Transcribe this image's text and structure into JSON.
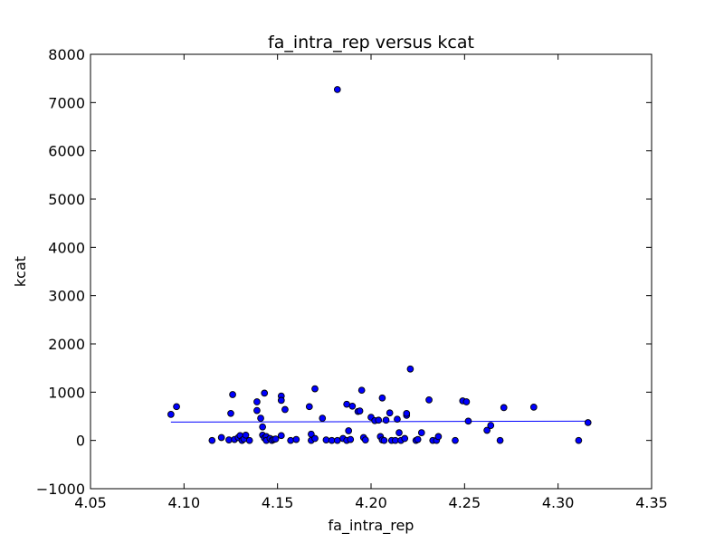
{
  "chart_data": {
    "type": "scatter",
    "title": "fa_intra_rep versus kcat",
    "xlabel": "fa_intra_rep",
    "ylabel": "kcat",
    "xlim": [
      4.05,
      4.35
    ],
    "ylim": [
      -1000,
      8000
    ],
    "xticks": [
      4.05,
      4.1,
      4.15,
      4.2,
      4.25,
      4.3,
      4.35
    ],
    "yticks": [
      -1000,
      0,
      1000,
      2000,
      3000,
      4000,
      5000,
      6000,
      7000,
      8000
    ],
    "xtick_labels": [
      "4.05",
      "4.10",
      "4.15",
      "4.20",
      "4.25",
      "4.30",
      "4.35"
    ],
    "ytick_labels": [
      "−1000",
      "0",
      "1000",
      "2000",
      "3000",
      "4000",
      "5000",
      "6000",
      "7000",
      "8000"
    ],
    "grid": false,
    "marker_color": "#0000ff",
    "line_color": "#0000ff",
    "points": [
      [
        4.093,
        540
      ],
      [
        4.096,
        700
      ],
      [
        4.115,
        0
      ],
      [
        4.12,
        60
      ],
      [
        4.124,
        10
      ],
      [
        4.125,
        560
      ],
      [
        4.126,
        950
      ],
      [
        4.127,
        20
      ],
      [
        4.129,
        60
      ],
      [
        4.13,
        100
      ],
      [
        4.131,
        0
      ],
      [
        4.132,
        30
      ],
      [
        4.133,
        110
      ],
      [
        4.135,
        0
      ],
      [
        4.139,
        800
      ],
      [
        4.139,
        620
      ],
      [
        4.141,
        460
      ],
      [
        4.142,
        280
      ],
      [
        4.142,
        110
      ],
      [
        4.143,
        980
      ],
      [
        4.143,
        50
      ],
      [
        4.144,
        80
      ],
      [
        4.144,
        0
      ],
      [
        4.146,
        40
      ],
      [
        4.147,
        0
      ],
      [
        4.148,
        20
      ],
      [
        4.149,
        30
      ],
      [
        4.152,
        920
      ],
      [
        4.152,
        830
      ],
      [
        4.152,
        100
      ],
      [
        4.154,
        640
      ],
      [
        4.157,
        0
      ],
      [
        4.16,
        20
      ],
      [
        4.167,
        700
      ],
      [
        4.168,
        130
      ],
      [
        4.168,
        0
      ],
      [
        4.17,
        1070
      ],
      [
        4.17,
        40
      ],
      [
        4.174,
        460
      ],
      [
        4.176,
        10
      ],
      [
        4.179,
        0
      ],
      [
        4.182,
        0
      ],
      [
        4.182,
        7270
      ],
      [
        4.185,
        40
      ],
      [
        4.187,
        750
      ],
      [
        4.187,
        0
      ],
      [
        4.188,
        200
      ],
      [
        4.189,
        20
      ],
      [
        4.19,
        710
      ],
      [
        4.193,
        600
      ],
      [
        4.194,
        610
      ],
      [
        4.195,
        1040
      ],
      [
        4.196,
        60
      ],
      [
        4.197,
        10
      ],
      [
        4.2,
        480
      ],
      [
        4.202,
        410
      ],
      [
        4.204,
        420
      ],
      [
        4.205,
        80
      ],
      [
        4.206,
        10
      ],
      [
        4.206,
        880
      ],
      [
        4.207,
        0
      ],
      [
        4.208,
        420
      ],
      [
        4.21,
        570
      ],
      [
        4.211,
        0
      ],
      [
        4.213,
        0
      ],
      [
        4.214,
        440
      ],
      [
        4.215,
        160
      ],
      [
        4.216,
        0
      ],
      [
        4.218,
        40
      ],
      [
        4.219,
        520
      ],
      [
        4.219,
        560
      ],
      [
        4.221,
        1480
      ],
      [
        4.224,
        0
      ],
      [
        4.225,
        20
      ],
      [
        4.227,
        160
      ],
      [
        4.231,
        840
      ],
      [
        4.233,
        0
      ],
      [
        4.235,
        0
      ],
      [
        4.236,
        80
      ],
      [
        4.245,
        0
      ],
      [
        4.249,
        820
      ],
      [
        4.251,
        800
      ],
      [
        4.252,
        400
      ],
      [
        4.262,
        210
      ],
      [
        4.264,
        310
      ],
      [
        4.269,
        0
      ],
      [
        4.271,
        680
      ],
      [
        4.287,
        690
      ],
      [
        4.311,
        0
      ],
      [
        4.316,
        370
      ]
    ],
    "fit_line": {
      "x": [
        4.093,
        4.316
      ],
      "y": [
        380,
        400
      ]
    }
  }
}
